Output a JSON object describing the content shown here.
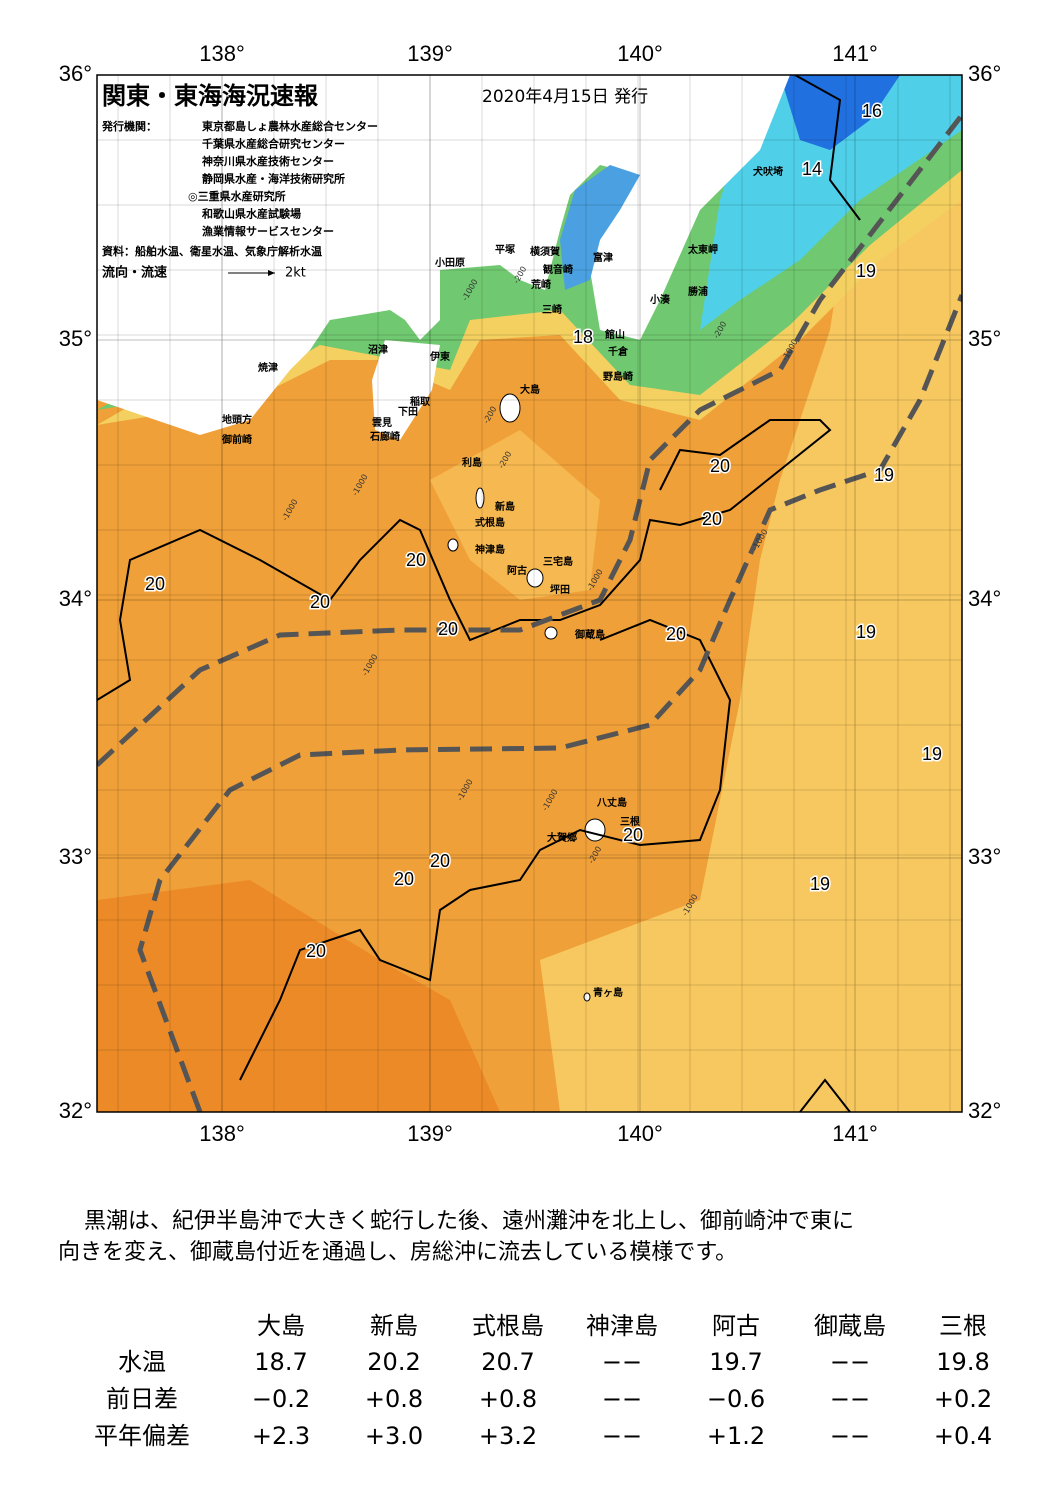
{
  "header": {
    "title": "関東・東海海況速報",
    "date": "2020年4月15日 発行",
    "issuer_label": "発行機関：",
    "issuers": [
      "東京都島しょ農林水産総合センター",
      "千葉県水産総合研究センター",
      "神奈川県水産技術センター",
      "静岡県水産・海洋技術研究所",
      "◎三重県水産研究所",
      "和歌山県水産試験場",
      "漁業情報サービスセンター"
    ],
    "sources": "資料：船舶水温、衛星水温、気象庁解析水温",
    "legend_label": "流向・流速",
    "legend_scale": "2kt"
  },
  "map": {
    "lon_labels": [
      "138°",
      "139°",
      "140°",
      "141°"
    ],
    "lat_labels": [
      "36°",
      "35°",
      "34°",
      "33°",
      "32°"
    ],
    "places": [
      "小田原",
      "平塚",
      "横須賀",
      "富津",
      "観音崎",
      "荒崎",
      "三崎",
      "館山",
      "千倉",
      "野島崎",
      "小湊",
      "勝浦",
      "太東岬",
      "犬吠埼",
      "沼津",
      "伊東",
      "稲取",
      "下田",
      "雲見",
      "石廊崎",
      "焼津",
      "地頭方",
      "御前崎",
      "大島",
      "利島",
      "新島",
      "式根島",
      "神津島",
      "三宅島",
      "阿古",
      "坪田",
      "御蔵島",
      "八丈島",
      "三根",
      "大賀郷",
      "青ヶ島"
    ],
    "temperature_labels": [
      "16",
      "14",
      "18",
      "19",
      "20",
      "19",
      "20",
      "20",
      "20",
      "20",
      "20",
      "20",
      "19",
      "19",
      "20",
      "20",
      "20",
      "19",
      "20"
    ],
    "depth_labels": [
      "-1000",
      "-200",
      "-200",
      "-1000",
      "-200",
      "-1000",
      "-1000",
      "-1000",
      "-1000",
      "-1000",
      "-200",
      "-1000",
      "-1000",
      "-1000",
      "-200"
    ]
  },
  "summary": [
    "　黒潮は、紀伊半島沖で大きく蛇行した後、遠州灘沖を北上し、御前崎沖で東に",
    "向きを変え、御蔵島付近を通過し、房総沖に流去している模様です。"
  ],
  "table": {
    "columns": [
      "大島",
      "新島",
      "式根島",
      "神津島",
      "阿古",
      "御蔵島",
      "三根"
    ],
    "rows": [
      [
        "水温",
        "18.7",
        "20.2",
        "20.7",
        "−−",
        "19.7",
        "−−",
        "19.8"
      ],
      [
        "前日差",
        "−0.2",
        "+0.8",
        "+0.8",
        "−−",
        "−0.6",
        "−−",
        "+0.2"
      ],
      [
        "平年偏差",
        "+2.3",
        "+3.0",
        "+3.2",
        "−−",
        "+1.2",
        "−−",
        "+0.4"
      ]
    ]
  }
}
